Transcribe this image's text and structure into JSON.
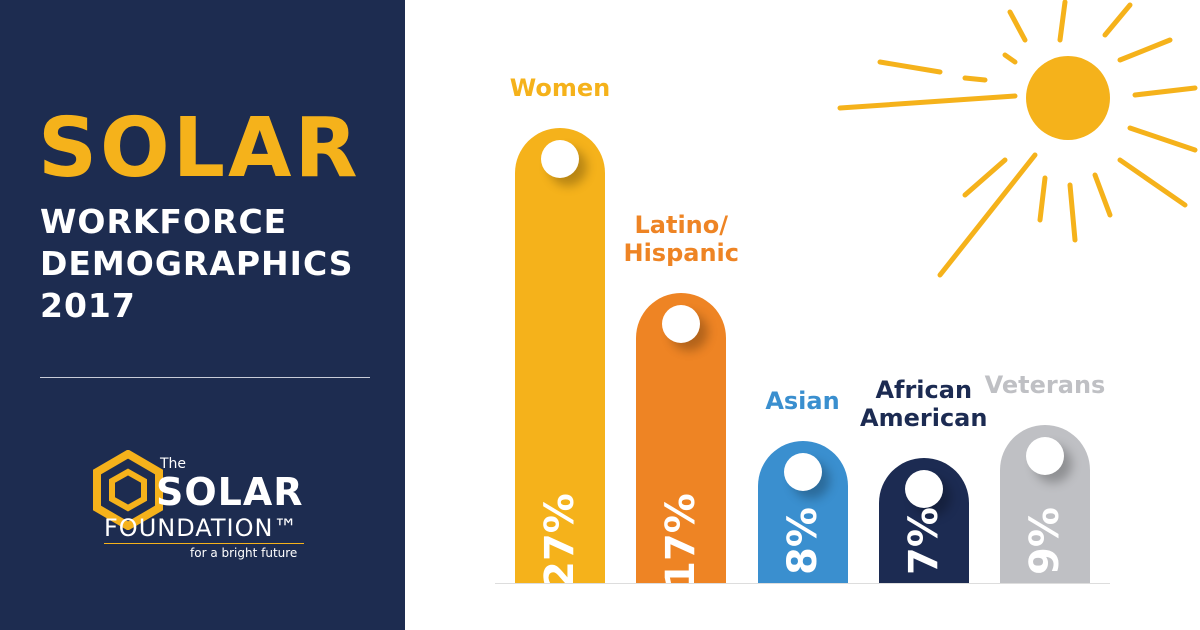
{
  "chart_data": {
    "type": "bar",
    "title": "SOLAR",
    "subtitle": [
      "WORKFORCE",
      "DEMOGRAPHICS",
      "2017"
    ],
    "categories": [
      "Women",
      "Latino/ Hispanic",
      "Asian",
      "African American",
      "Veterans"
    ],
    "values": [
      27,
      17,
      8,
      7,
      9
    ],
    "value_labels": [
      "27%",
      "17%",
      "8%",
      "7%",
      "9%"
    ],
    "colors": [
      "#f5b21b",
      "#ee8424",
      "#3a8fcf",
      "#1c2b52",
      "#bfc0c4"
    ]
  },
  "logo": {
    "prefix": "The",
    "name": "SOLAR",
    "name2": "FOUNDATION™",
    "tagline": "for a bright future"
  }
}
